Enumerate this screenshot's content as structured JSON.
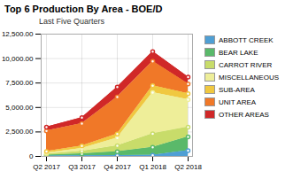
{
  "chart_data": {
    "type": "area",
    "stacked": true,
    "title": "Top 6 Production By Area - BOE/D",
    "subtitle": "Last Five Quarters",
    "categories": [
      "Q2 2017",
      "Q3 2017",
      "Q4 2017",
      "Q1 2018",
      "Q2 2018"
    ],
    "series": [
      {
        "name": "ABBOTT CREEK",
        "color": "#4f9fd4",
        "values": [
          50,
          60,
          80,
          120,
          600
        ]
      },
      {
        "name": "BEAR LAKE",
        "color": "#5ab96a",
        "values": [
          80,
          200,
          400,
          800,
          1400
        ]
      },
      {
        "name": "CARROT RIVER",
        "color": "#c8dc6a",
        "values": [
          100,
          250,
          600,
          1400,
          1000
        ]
      },
      {
        "name": "MISCELLANEOUS",
        "color": "#eeee99",
        "values": [
          120,
          300,
          800,
          4200,
          2800
        ]
      },
      {
        "name": "SUB-AREA",
        "color": "#f0c840",
        "values": [
          150,
          250,
          400,
          700,
          600
        ]
      },
      {
        "name": "UNIT AREA",
        "color": "#f07828",
        "values": [
          2100,
          2300,
          3800,
          2500,
          1000
        ]
      },
      {
        "name": "OTHER AREAS",
        "color": "#d02828",
        "values": [
          400,
          600,
          1000,
          1000,
          700
        ]
      }
    ],
    "ylim": [
      0,
      12500
    ],
    "yticks": [
      0,
      {
        "value": 2500,
        "label": "2,500.00"
      },
      {
        "value": 5000,
        "label": "5,000.00"
      },
      {
        "value": 7500,
        "label": "7,500.00"
      },
      {
        "value": 10000,
        "label": "10,000.00"
      },
      {
        "value": 12500,
        "label": "12,500.00"
      }
    ],
    "grid": true,
    "marker": "circle",
    "legend": "right"
  }
}
